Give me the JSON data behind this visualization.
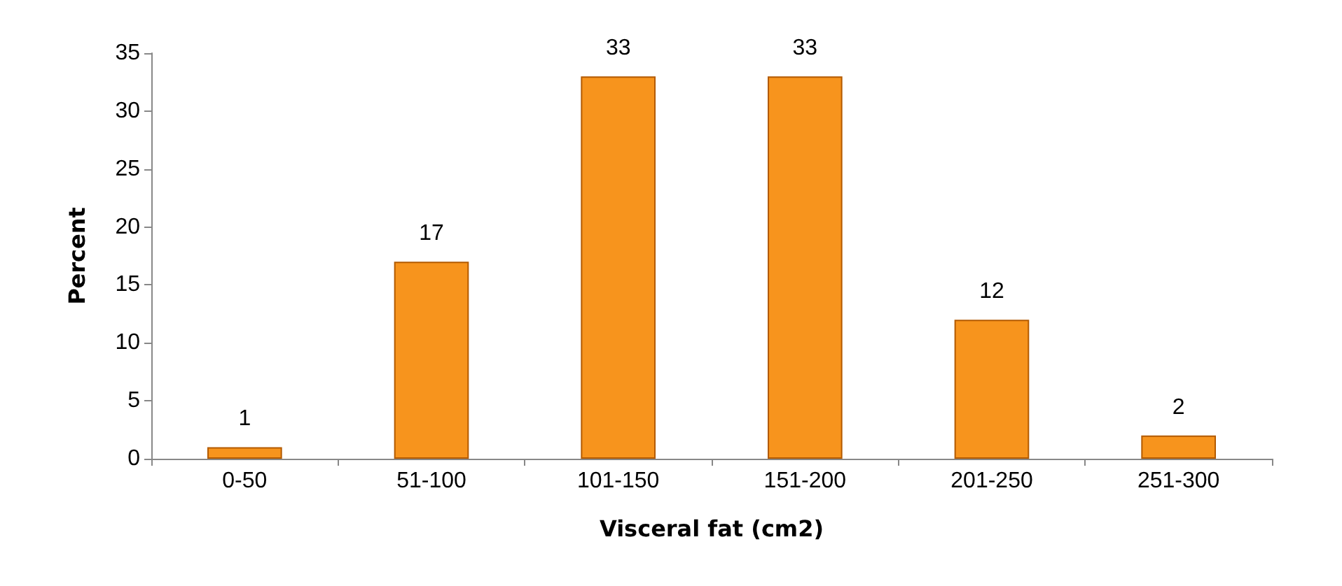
{
  "chart_data": {
    "type": "bar",
    "xlabel": "Visceral fat (cm2)",
    "ylabel": "Percent",
    "categories": [
      "0-50",
      "51-100",
      "101-150",
      "151-200",
      "201-250",
      "251-300"
    ],
    "values": [
      1,
      17,
      33,
      33,
      12,
      2
    ],
    "color": "#f7941d",
    "ylim": [
      0,
      35
    ],
    "yticks": [
      0,
      5,
      10,
      15,
      20,
      25,
      30,
      35
    ],
    "grid": false,
    "data_labels": true
  }
}
